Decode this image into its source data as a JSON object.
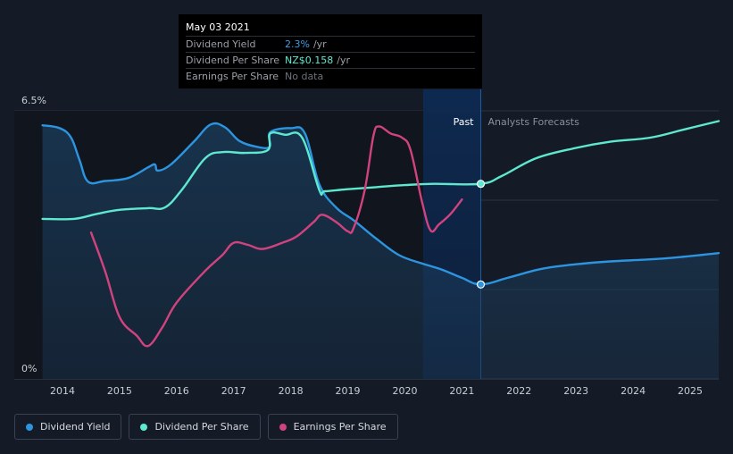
{
  "chart_data": {
    "type": "line",
    "title": "",
    "x_ticks": [
      "2014",
      "2015",
      "2016",
      "2017",
      "2018",
      "2019",
      "2020",
      "2021",
      "2022",
      "2023",
      "2024",
      "2025"
    ],
    "y_ticks": [
      {
        "label": "6.5%",
        "value": 6.5
      },
      {
        "label": "0%",
        "value": 0
      }
    ],
    "ylim": [
      0,
      6.5
    ],
    "xlim": [
      2013.6,
      2025.5
    ],
    "past_label": "Past",
    "forecast_label": "Analysts Forecasts",
    "past_region_start": 2020.32,
    "past_end": 2021.33,
    "colors": {
      "dividend_yield": "#2d94e0",
      "dividend_per_share": "#5fe8d0",
      "earnings_per_share": "#d1437f"
    },
    "series": [
      {
        "name": "Dividend Yield",
        "key": "dividend_yield",
        "points": [
          [
            2013.65,
            6.15
          ],
          [
            2013.95,
            6.08
          ],
          [
            2014.15,
            5.85
          ],
          [
            2014.3,
            5.3
          ],
          [
            2014.45,
            4.78
          ],
          [
            2014.75,
            4.8
          ],
          [
            2015.15,
            4.87
          ],
          [
            2015.5,
            5.13
          ],
          [
            2015.62,
            5.2
          ],
          [
            2015.67,
            5.05
          ],
          [
            2015.9,
            5.2
          ],
          [
            2016.3,
            5.75
          ],
          [
            2016.6,
            6.17
          ],
          [
            2016.85,
            6.1
          ],
          [
            2017.1,
            5.77
          ],
          [
            2017.4,
            5.63
          ],
          [
            2017.63,
            5.63
          ],
          [
            2017.64,
            5.98
          ],
          [
            2018.0,
            6.08
          ],
          [
            2018.25,
            5.95
          ],
          [
            2018.5,
            4.72
          ],
          [
            2018.8,
            4.15
          ],
          [
            2019.1,
            3.85
          ],
          [
            2019.5,
            3.4
          ],
          [
            2019.9,
            3.0
          ],
          [
            2020.3,
            2.8
          ],
          [
            2020.65,
            2.65
          ],
          [
            2021.0,
            2.45
          ],
          [
            2021.33,
            2.29
          ],
          [
            2021.8,
            2.45
          ],
          [
            2022.4,
            2.67
          ],
          [
            2023.0,
            2.78
          ],
          [
            2023.6,
            2.85
          ],
          [
            2024.2,
            2.89
          ],
          [
            2024.8,
            2.95
          ],
          [
            2025.5,
            3.05
          ]
        ]
      },
      {
        "name": "Dividend Per Share",
        "key": "dividend_per_share",
        "points": [
          [
            2013.65,
            3.88
          ],
          [
            2014.2,
            3.88
          ],
          [
            2014.6,
            4.0
          ],
          [
            2015.0,
            4.1
          ],
          [
            2015.5,
            4.14
          ],
          [
            2015.8,
            4.16
          ],
          [
            2016.1,
            4.6
          ],
          [
            2016.5,
            5.35
          ],
          [
            2016.8,
            5.5
          ],
          [
            2017.2,
            5.48
          ],
          [
            2017.6,
            5.55
          ],
          [
            2017.64,
            5.95
          ],
          [
            2017.9,
            5.92
          ],
          [
            2018.2,
            5.85
          ],
          [
            2018.5,
            4.58
          ],
          [
            2018.6,
            4.55
          ],
          [
            2019.0,
            4.6
          ],
          [
            2019.5,
            4.65
          ],
          [
            2020.0,
            4.7
          ],
          [
            2020.5,
            4.73
          ],
          [
            2021.33,
            4.73
          ],
          [
            2021.7,
            4.92
          ],
          [
            2022.3,
            5.35
          ],
          [
            2023.0,
            5.6
          ],
          [
            2023.6,
            5.75
          ],
          [
            2024.3,
            5.85
          ],
          [
            2024.9,
            6.05
          ],
          [
            2025.5,
            6.25
          ]
        ]
      },
      {
        "name": "Earnings Per Share",
        "key": "earnings_per_share",
        "points": [
          [
            2014.5,
            3.55
          ],
          [
            2014.75,
            2.6
          ],
          [
            2015.0,
            1.5
          ],
          [
            2015.3,
            1.05
          ],
          [
            2015.5,
            0.8
          ],
          [
            2015.75,
            1.25
          ],
          [
            2016.0,
            1.85
          ],
          [
            2016.5,
            2.62
          ],
          [
            2016.8,
            3.0
          ],
          [
            2017.0,
            3.3
          ],
          [
            2017.25,
            3.25
          ],
          [
            2017.5,
            3.15
          ],
          [
            2017.85,
            3.3
          ],
          [
            2018.1,
            3.45
          ],
          [
            2018.4,
            3.8
          ],
          [
            2018.55,
            3.98
          ],
          [
            2018.8,
            3.8
          ],
          [
            2019.0,
            3.58
          ],
          [
            2019.1,
            3.65
          ],
          [
            2019.3,
            4.6
          ],
          [
            2019.45,
            5.9
          ],
          [
            2019.55,
            6.12
          ],
          [
            2019.75,
            5.95
          ],
          [
            2019.95,
            5.85
          ],
          [
            2020.1,
            5.55
          ],
          [
            2020.3,
            4.3
          ],
          [
            2020.45,
            3.6
          ],
          [
            2020.6,
            3.75
          ],
          [
            2020.8,
            4.0
          ],
          [
            2021.0,
            4.35
          ]
        ]
      }
    ]
  },
  "tooltip": {
    "date": "May 03 2021",
    "rows": [
      {
        "name": "Dividend Yield",
        "value": "2.3%",
        "unit": "/yr"
      },
      {
        "name": "Dividend Per Share",
        "value": "NZ$0.158",
        "unit": "/yr"
      },
      {
        "name": "Earnings Per Share",
        "value": "No data",
        "unit": ""
      }
    ]
  },
  "legend": [
    {
      "label": "Dividend Yield",
      "key": "dividend_yield"
    },
    {
      "label": "Dividend Per Share",
      "key": "dividend_per_share"
    },
    {
      "label": "Earnings Per Share",
      "key": "earnings_per_share"
    }
  ]
}
